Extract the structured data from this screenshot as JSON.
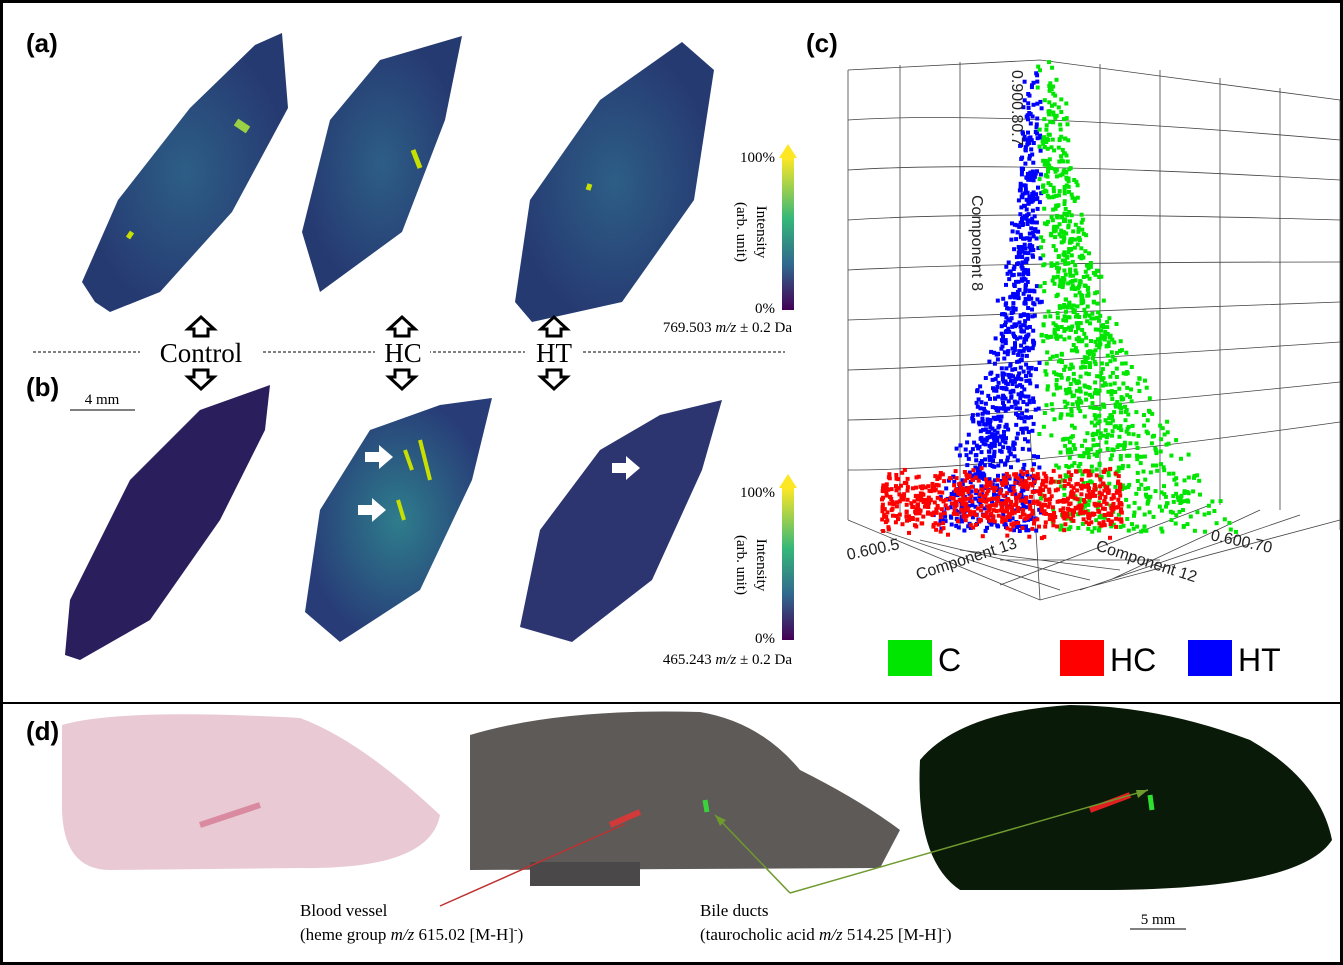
{
  "panel_a": {
    "label": "(a)",
    "scale_max": "100%",
    "scale_min": "0%",
    "scale_title": "Intensity",
    "scale_unit": "(arb. unit)",
    "mz_value": "769.503 ",
    "mz_unit": "m/z",
    "mz_tolerance": " ± 0.2 Da"
  },
  "panel_b": {
    "label": "(b)",
    "scale_bar": "4 mm",
    "scale_max": "100%",
    "scale_min": "0%",
    "scale_title": "Intensity",
    "scale_unit": "(arb. unit)",
    "mz_value": "465.243 ",
    "mz_unit": "m/z",
    "mz_tolerance": " ± 0.2 Da"
  },
  "groups": [
    "Control",
    "HC",
    "HT"
  ],
  "panel_c": {
    "label": "(c)",
    "axis_z": "Component 8",
    "axis_x": "Component 13",
    "axis_y": "Component 12",
    "tick_text_z": "0.900.80.7",
    "tick_text_x": "0.600.5",
    "tick_text_y": "0.600.70",
    "legend": [
      {
        "name": "C",
        "color": "#00e600"
      },
      {
        "name": "HC",
        "color": "#ff0000"
      },
      {
        "name": "HT",
        "color": "#0000ff"
      }
    ]
  },
  "panel_d": {
    "label": "(d)",
    "scale_bar": "5 mm",
    "annotations": [
      {
        "title": "Blood vessel",
        "prefix": "(heme group ",
        "unit": "m/z",
        "suffix": " 615.02 [M-H]",
        "sup": "-",
        "close": ")"
      },
      {
        "title": "Bile ducts",
        "prefix": "(taurocholic acid ",
        "unit": "m/z",
        "suffix": " 514.25 [M-H]",
        "sup": "-",
        "close": ")"
      }
    ]
  }
}
